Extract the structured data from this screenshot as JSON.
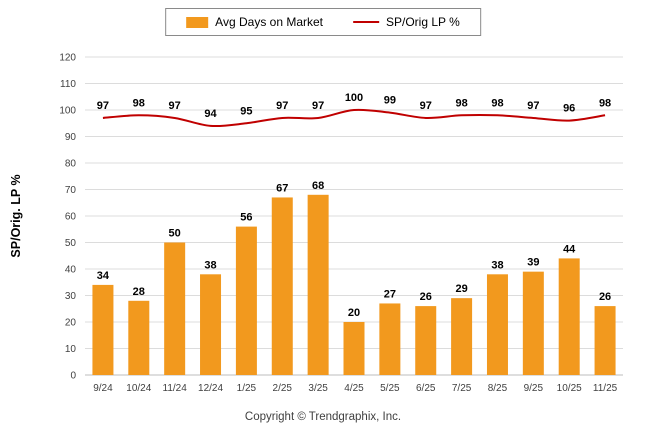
{
  "chart_data": {
    "type": "bar",
    "title": "",
    "categories": [
      "9/24",
      "10/24",
      "11/24",
      "12/24",
      "1/25",
      "2/25",
      "3/25",
      "4/25",
      "5/25",
      "6/25",
      "7/25",
      "8/25",
      "9/25",
      "10/25",
      "11/25"
    ],
    "series": [
      {
        "name": "Avg Days on Market",
        "type": "bar",
        "color": "#F2991E",
        "values": [
          34,
          28,
          50,
          38,
          56,
          67,
          68,
          20,
          27,
          26,
          29,
          38,
          39,
          44,
          26
        ]
      },
      {
        "name": "SP/Orig LP %",
        "type": "line",
        "color": "#C00000",
        "values": [
          97,
          98,
          97,
          94,
          95,
          97,
          97,
          100,
          99,
          97,
          98,
          98,
          97,
          96,
          98
        ]
      }
    ],
    "xlabel": "",
    "ylabel": "SP/Orig. LP %",
    "ylim": [
      0,
      120
    ],
    "ytick_step": 10,
    "grid": true,
    "legend_position": "top-center",
    "gridline_color": "#DCDCDC",
    "axis_text_color": "#404040",
    "label_text_color": "#000000"
  },
  "footer": {
    "copyright": "Copyright © Trendgraphix, Inc."
  }
}
